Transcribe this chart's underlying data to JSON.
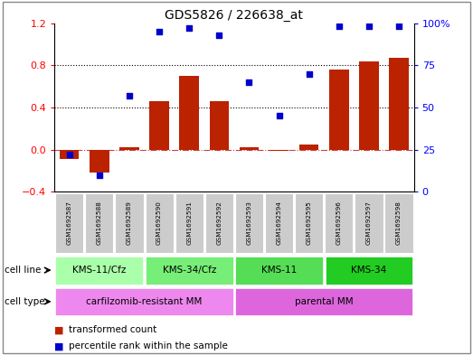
{
  "title": "GDS5826 / 226638_at",
  "samples": [
    "GSM1692587",
    "GSM1692588",
    "GSM1692589",
    "GSM1692590",
    "GSM1692591",
    "GSM1692592",
    "GSM1692593",
    "GSM1692594",
    "GSM1692595",
    "GSM1692596",
    "GSM1692597",
    "GSM1692598"
  ],
  "transformed_count": [
    -0.09,
    -0.22,
    0.02,
    0.46,
    0.7,
    0.46,
    0.02,
    -0.01,
    0.05,
    0.76,
    0.84,
    0.87
  ],
  "percentile_rank": [
    22,
    10,
    57,
    95,
    97,
    93,
    65,
    45,
    70,
    98,
    98,
    98
  ],
  "ylim_left": [
    -0.4,
    1.2
  ],
  "ylim_right": [
    0,
    100
  ],
  "yticks_left": [
    -0.4,
    0.0,
    0.4,
    0.8,
    1.2
  ],
  "yticks_right": [
    0,
    25,
    50,
    75,
    100
  ],
  "bar_color": "#bb2200",
  "dot_color": "#0000cc",
  "zero_line_color": "#cc4444",
  "dotted_line_color": "#000000",
  "cell_line_groups": [
    {
      "label": "KMS-11/Cfz",
      "start": 0,
      "end": 3,
      "color": "#aaffaa"
    },
    {
      "label": "KMS-34/Cfz",
      "start": 3,
      "end": 6,
      "color": "#77ee77"
    },
    {
      "label": "KMS-11",
      "start": 6,
      "end": 9,
      "color": "#55dd55"
    },
    {
      "label": "KMS-34",
      "start": 9,
      "end": 12,
      "color": "#22cc22"
    }
  ],
  "cell_type_groups": [
    {
      "label": "carfilzomib-resistant MM",
      "start": 0,
      "end": 6,
      "color": "#ee88ee"
    },
    {
      "label": "parental MM",
      "start": 6,
      "end": 12,
      "color": "#dd66dd"
    }
  ],
  "cell_line_label": "cell line",
  "cell_type_label": "cell type",
  "legend_bar_label": "transformed count",
  "legend_dot_label": "percentile rank within the sample",
  "bg_color": "#ffffff",
  "plot_bg_color": "#ffffff",
  "sample_bg_color": "#cccccc",
  "border_color": "#888888"
}
